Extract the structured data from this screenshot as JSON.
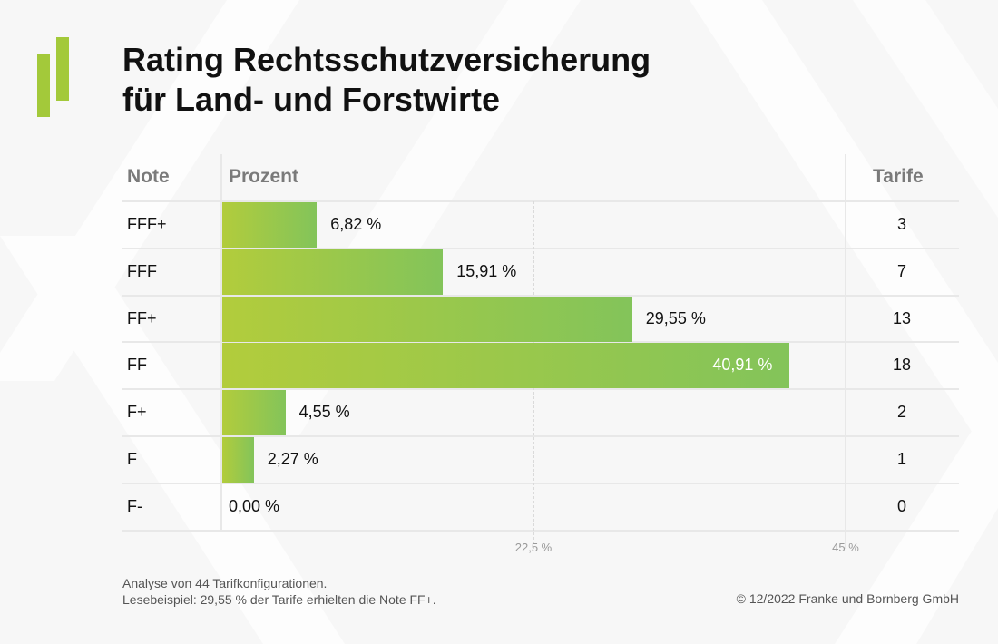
{
  "title": {
    "line1": "Rating Rechtsschutzversicherung",
    "line2": "für Land- und Forstwirte"
  },
  "headers": {
    "note": "Note",
    "percent": "Prozent",
    "tariffs": "Tarife"
  },
  "colors": {
    "bar_start": "#b2cc3c",
    "bar_end": "#83c45a",
    "logo": "#a3c93a"
  },
  "chart_data": {
    "type": "bar",
    "orientation": "horizontal",
    "title": "Rating Rechtsschutzversicherung für Land- und Forstwirte",
    "categories": [
      "FFF+",
      "FFF",
      "FF+",
      "FF",
      "F+",
      "F",
      "F-"
    ],
    "values": [
      6.82,
      15.91,
      29.55,
      40.91,
      4.55,
      2.27,
      0.0
    ],
    "value_labels": [
      "6,82 %",
      "15,91 %",
      "29,55 %",
      "40,91 %",
      "4,55 %",
      "2,27 %",
      "0,00 %"
    ],
    "tariffs": [
      3,
      7,
      13,
      18,
      2,
      1,
      0
    ],
    "xlim": [
      0,
      45
    ],
    "xticks": [
      22.5,
      45
    ],
    "xtick_labels": [
      "22,5 %",
      "45 %"
    ],
    "xlabel": "Prozent",
    "ylabel": "Note"
  },
  "footer": {
    "line1": "Analyse von 44 Tarifkonfigurationen.",
    "line2": "Lesebeispiel: 29,55 % der Tarife erhielten die Note FF+.",
    "copyright": "© 12/2022 Franke und Bornberg GmbH"
  }
}
